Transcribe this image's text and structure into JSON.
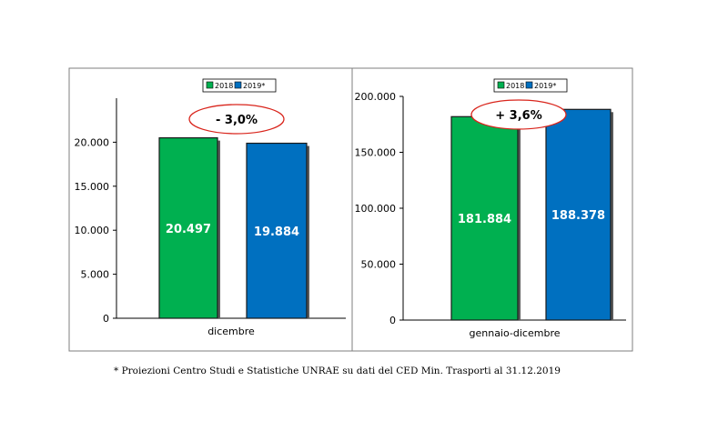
{
  "colors": {
    "y2018": "#00b050",
    "y2019": "#0070c0",
    "ellipse": "#d9251c",
    "frame": "#7f7f7f"
  },
  "chart_data": [
    {
      "type": "bar",
      "categories": [
        "dicembre"
      ],
      "series": [
        {
          "name": "2018",
          "values": [
            20497
          ],
          "labels": [
            "20.497"
          ]
        },
        {
          "name": "2019*",
          "values": [
            19884
          ],
          "labels": [
            "19.884"
          ]
        }
      ],
      "ylim": [
        0,
        25000
      ],
      "yticks": [
        0,
        5000,
        10000,
        15000,
        20000
      ],
      "ytick_labels": [
        "0",
        "5.000",
        "10.000",
        "15.000",
        "20.000"
      ],
      "change_label": "- 3,0%",
      "legend": [
        "2018",
        "2019*"
      ]
    },
    {
      "type": "bar",
      "categories": [
        "gennaio-dicembre"
      ],
      "series": [
        {
          "name": "2018",
          "values": [
            181884
          ],
          "labels": [
            "181.884"
          ]
        },
        {
          "name": "2019*",
          "values": [
            188378
          ],
          "labels": [
            "188.378"
          ]
        }
      ],
      "ylim": [
        0,
        200000
      ],
      "yticks": [
        0,
        50000,
        100000,
        150000,
        200000
      ],
      "ytick_labels": [
        "0",
        "50.000",
        "100.000",
        "150.000",
        "200.000"
      ],
      "change_label": "+ 3,6%",
      "legend": [
        "2018",
        "2019*"
      ]
    }
  ],
  "footnote": "* Proiezioni Centro Studi e Statistiche UNRAE su dati del CED Min. Trasporti al 31.12.2019"
}
